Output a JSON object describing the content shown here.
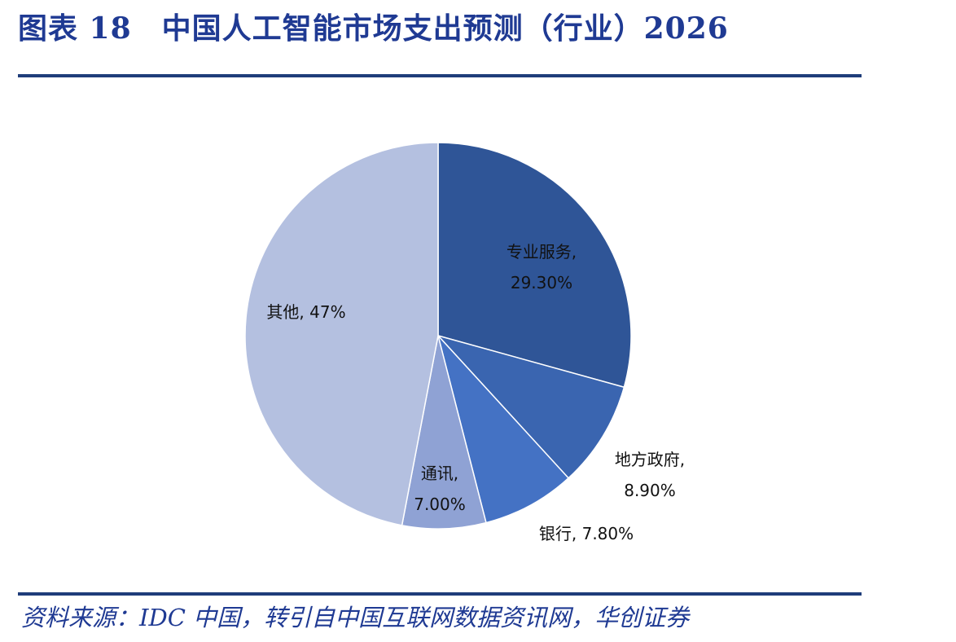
{
  "title": "图表 18　中国人工智能市场支出预测（行业）2026",
  "source": "资料来源：IDC 中国，转引自中国互联网数据资讯网，华创证券",
  "chart_data": {
    "type": "pie",
    "title": "图表 18　中国人工智能市场支出预测（行业）2026",
    "slices": [
      {
        "name": "专业服务",
        "value": 29.3,
        "label_line1": "专业服务,",
        "label_line2": "29.30%",
        "color": "#2f5597"
      },
      {
        "name": "地方政府",
        "value": 8.9,
        "label_line1": "地方政府,",
        "label_line2": "8.90%",
        "color": "#3a65b0"
      },
      {
        "name": "银行",
        "value": 7.8,
        "label_line1": "银行, 7.80%",
        "label_line2": "",
        "color": "#4472c4"
      },
      {
        "name": "通讯",
        "value": 7.0,
        "label_line1": "通讯,",
        "label_line2": "7.00%",
        "color": "#8fa2d4"
      },
      {
        "name": "其他",
        "value": 47.0,
        "label_line1": "其他, 47%",
        "label_line2": "",
        "color": "#b4c0e0"
      }
    ]
  }
}
